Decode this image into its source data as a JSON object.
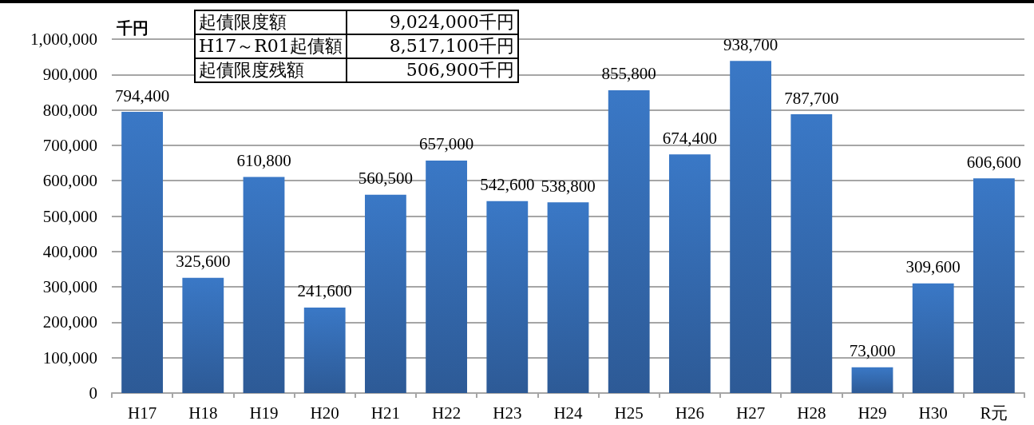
{
  "chart_data": {
    "type": "bar",
    "ylabel": "千円",
    "categories": [
      "H17",
      "H18",
      "H19",
      "H20",
      "H21",
      "H22",
      "H23",
      "H24",
      "H25",
      "H26",
      "H27",
      "H28",
      "H29",
      "H30",
      "R元"
    ],
    "values": [
      794400,
      325600,
      610800,
      241600,
      560500,
      657000,
      542600,
      538800,
      855800,
      674400,
      938700,
      787700,
      73000,
      309600,
      606600
    ],
    "value_labels": [
      "794,400",
      "325,600",
      "610,800",
      "241,600",
      "560,500",
      "657,000",
      "542,600",
      "538,800",
      "855,800",
      "674,400",
      "938,700",
      "787,700",
      "73,000",
      "309,600",
      "606,600"
    ],
    "color": "#3a78c6",
    "ylim": [
      0,
      1000000
    ],
    "yticks": [
      0,
      {
        "value": 100000,
        "label": "100,000"
      },
      {
        "value": 200000,
        "label": "200,000"
      },
      {
        "value": 300000,
        "label": "300,000"
      },
      {
        "value": 400000,
        "label": "400,000"
      },
      {
        "value": 500000,
        "label": "500,000"
      },
      {
        "value": 600000,
        "label": "600,000"
      },
      {
        "value": 700000,
        "label": "700,000"
      },
      {
        "value": 800000,
        "label": "800,000"
      },
      {
        "value": 900000,
        "label": "900,000"
      },
      {
        "value": 1000000,
        "label": "1,000,000"
      }
    ],
    "grid": "y",
    "annotations": [
      "起債限度額",
      "9,024,000千円",
      "H17～R01起債額",
      "8,517,100千円",
      "起債限度残額",
      "506,900千円"
    ]
  }
}
